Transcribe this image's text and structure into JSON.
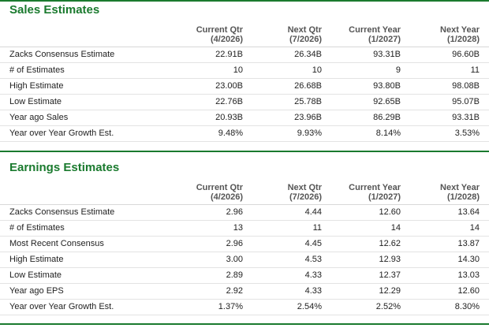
{
  "sales": {
    "title": "Sales Estimates",
    "columns": [
      {
        "line1": "Current Qtr",
        "line2": "(4/2026)"
      },
      {
        "line1": "Next Qtr",
        "line2": "(7/2026)"
      },
      {
        "line1": "Current Year",
        "line2": "(1/2027)"
      },
      {
        "line1": "Next Year",
        "line2": "(1/2028)"
      }
    ],
    "rows": [
      {
        "label": "Zacks Consensus Estimate",
        "values": [
          "22.91B",
          "26.34B",
          "93.31B",
          "96.60B"
        ]
      },
      {
        "label": "# of Estimates",
        "values": [
          "10",
          "10",
          "9",
          "11"
        ]
      },
      {
        "label": "High Estimate",
        "values": [
          "23.00B",
          "26.68B",
          "93.80B",
          "98.08B"
        ]
      },
      {
        "label": "Low Estimate",
        "values": [
          "22.76B",
          "25.78B",
          "92.65B",
          "95.07B"
        ]
      },
      {
        "label": "Year ago Sales",
        "values": [
          "20.93B",
          "23.96B",
          "86.29B",
          "93.31B"
        ]
      },
      {
        "label": "Year over Year Growth Est.",
        "values": [
          "9.48%",
          "9.93%",
          "8.14%",
          "3.53%"
        ]
      }
    ]
  },
  "earnings": {
    "title": "Earnings Estimates",
    "columns": [
      {
        "line1": "Current Qtr",
        "line2": "(4/2026)"
      },
      {
        "line1": "Next Qtr",
        "line2": "(7/2026)"
      },
      {
        "line1": "Current Year",
        "line2": "(1/2027)"
      },
      {
        "line1": "Next Year",
        "line2": "(1/2028)"
      }
    ],
    "rows": [
      {
        "label": "Zacks Consensus Estimate",
        "values": [
          "2.96",
          "4.44",
          "12.60",
          "13.64"
        ]
      },
      {
        "label": "# of Estimates",
        "values": [
          "13",
          "11",
          "14",
          "14"
        ]
      },
      {
        "label": "Most Recent Consensus",
        "values": [
          "2.96",
          "4.45",
          "12.62",
          "13.87"
        ]
      },
      {
        "label": "High Estimate",
        "values": [
          "3.00",
          "4.53",
          "12.93",
          "14.30"
        ]
      },
      {
        "label": "Low Estimate",
        "values": [
          "2.89",
          "4.33",
          "12.37",
          "13.03"
        ]
      },
      {
        "label": "Year ago EPS",
        "values": [
          "2.92",
          "4.33",
          "12.29",
          "12.60"
        ]
      },
      {
        "label": "Year over Year Growth Est.",
        "values": [
          "1.37%",
          "2.54%",
          "2.52%",
          "8.30%"
        ]
      }
    ]
  },
  "colors": {
    "accent": "#1a7a2e",
    "text": "#222222",
    "header_text": "#555555",
    "row_border": "#e3e3e3"
  }
}
